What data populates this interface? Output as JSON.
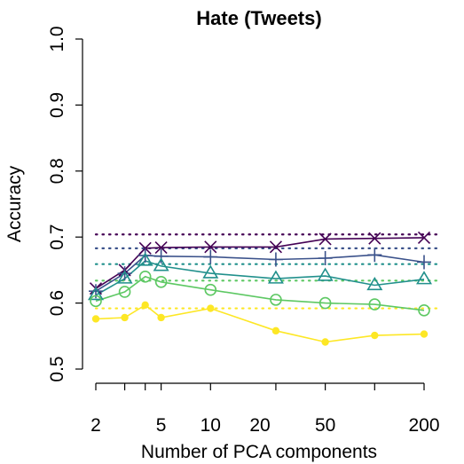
{
  "chart_data": {
    "type": "line",
    "title": "Hate (Tweets)",
    "xlabel": "Number of PCA components",
    "ylabel": "Accuracy",
    "x_scale": "log",
    "xlim": [
      2,
      200
    ],
    "ylim": [
      0.5,
      1.0
    ],
    "x_ticks": [
      2,
      5,
      10,
      20,
      50,
      200
    ],
    "x_tick_labels": [
      "2",
      "5",
      "10",
      "20",
      "50",
      "200"
    ],
    "y_ticks": [
      0.5,
      0.6,
      0.7,
      0.8,
      0.9,
      1.0
    ],
    "y_tick_labels": [
      "0.5",
      "0.6",
      "0.7",
      "0.8",
      "0.9",
      "1.0"
    ],
    "x": [
      2,
      3,
      4,
      5,
      10,
      25,
      50,
      100,
      200
    ],
    "grid": false,
    "series": [
      {
        "color": "#440154",
        "marker": "x",
        "values": [
          0.622,
          0.65,
          0.683,
          0.684,
          0.685,
          0.685,
          0.697,
          0.698,
          0.699
        ],
        "baseline": 0.704
      },
      {
        "color": "#3b528b",
        "marker": "plus",
        "values": [
          0.618,
          0.645,
          0.672,
          0.671,
          0.67,
          0.666,
          0.668,
          0.673,
          0.662
        ],
        "baseline": 0.683
      },
      {
        "color": "#21908c",
        "marker": "triangle",
        "values": [
          0.612,
          0.637,
          0.664,
          0.656,
          0.645,
          0.637,
          0.641,
          0.627,
          0.636
        ],
        "baseline": 0.659
      },
      {
        "color": "#5dc863",
        "marker": "circle",
        "values": [
          0.603,
          0.617,
          0.64,
          0.632,
          0.62,
          0.605,
          0.6,
          0.598,
          0.589
        ],
        "baseline": 0.634
      },
      {
        "color": "#fde725",
        "marker": "dot",
        "values": [
          0.576,
          0.578,
          0.597,
          0.578,
          0.592,
          0.558,
          0.541,
          0.551,
          0.553
        ],
        "baseline": 0.592
      }
    ]
  }
}
